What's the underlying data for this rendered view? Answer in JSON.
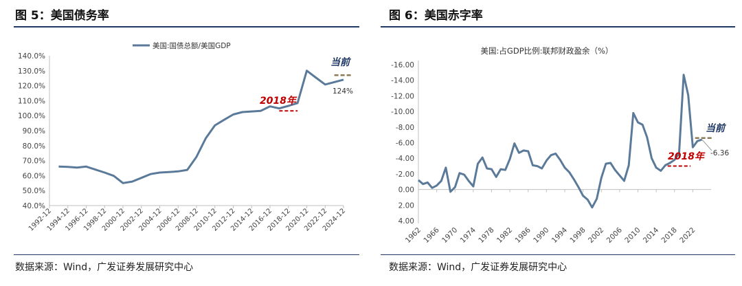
{
  "charts": [
    {
      "title": "图 5：美国债务率",
      "source": "数据来源：Wind，广发证券发展研究中心"
    },
    {
      "title": "图 6：美国赤字率",
      "source": "数据来源：Wind，广发证券发展研究中心"
    }
  ],
  "chart_data": [
    {
      "type": "line",
      "title": "",
      "xlabel": "",
      "ylabel": "",
      "legend": {
        "position": "top",
        "label": "美国:国债总额/美国GDP"
      },
      "ylim": [
        40,
        140
      ],
      "y_tick_labels": [
        "40.0%",
        "50.0%",
        "60.0%",
        "70.0%",
        "80.0%",
        "90.0%",
        "100.0%",
        "110.0%",
        "120.0%",
        "130.0%",
        "140.0%"
      ],
      "x_tick_labels": [
        "1992-12",
        "1994-12",
        "1996-12",
        "1998-12",
        "2000-12",
        "2002-12",
        "2004-12",
        "2006-12",
        "2008-12",
        "2010-12",
        "2012-12",
        "2014-12",
        "2016-12",
        "2018-12",
        "2020-12",
        "2022-12",
        "2024-12"
      ],
      "grid": false,
      "line_color": "#5b7a99",
      "series": [
        {
          "name": "美国:国债总额/美国GDP",
          "x": [
            1993,
            1994,
            1995,
            1996,
            1997,
            1998,
            1999,
            2000,
            2001,
            2002,
            2003,
            2004,
            2005,
            2006,
            2007,
            2008,
            2009,
            2010,
            2011,
            2012,
            2013,
            2014,
            2015,
            2016,
            2017,
            2018,
            2019,
            2020,
            2021,
            2022,
            2023,
            2024
          ],
          "values": [
            66,
            65.8,
            65.3,
            66,
            64,
            62,
            59.8,
            55,
            56,
            58.5,
            61,
            62,
            62.4,
            62.8,
            63.8,
            72.5,
            84.8,
            93.5,
            97.2,
            100.8,
            102.4,
            102.8,
            103.2,
            106.2,
            104.8,
            106.5,
            108.4,
            130,
            125.3,
            120.8,
            122.4,
            124
          ]
        }
      ],
      "annotations": [
        {
          "text": "2018年",
          "color": "#c00000",
          "ref_line_value": 103.2,
          "ref_line_x": [
            2017,
            2019
          ]
        },
        {
          "text": "当前",
          "color": "#1f3864",
          "ref_line_value": 127,
          "ref_line_x": [
            2023,
            2024.8
          ]
        },
        {
          "text": "124%",
          "color": "#333333"
        }
      ]
    },
    {
      "type": "line",
      "title": "美国:占GDP比例:联邦财政盈余（%）",
      "xlabel": "",
      "ylabel": "",
      "y_axis_reversed": true,
      "ylim": [
        4,
        -16
      ],
      "y_tick_labels": [
        "-16.00",
        "-14.00",
        "-12.00",
        "-10.00",
        "-8.00",
        "-6.00",
        "-4.00",
        "-2.00",
        "0.00",
        "2.00",
        "4.00"
      ],
      "x_tick_labels": [
        "1962",
        "1966",
        "1970",
        "1974",
        "1978",
        "1982",
        "1986",
        "1990",
        "1994",
        "1998",
        "2002",
        "2006",
        "2010",
        "2014",
        "2018",
        "2022"
      ],
      "grid": false,
      "line_color": "#5b7a99",
      "series": [
        {
          "name": "",
          "x": [
            1962,
            1963,
            1964,
            1965,
            1966,
            1967,
            1968,
            1969,
            1970,
            1971,
            1972,
            1973,
            1974,
            1975,
            1976,
            1977,
            1978,
            1979,
            1980,
            1981,
            1982,
            1983,
            1984,
            1985,
            1986,
            1987,
            1988,
            1989,
            1990,
            1991,
            1992,
            1993,
            1994,
            1995,
            1996,
            1997,
            1998,
            1999,
            2000,
            2001,
            2002,
            2003,
            2004,
            2005,
            2006,
            2007,
            2008,
            2009,
            2010,
            2011,
            2012,
            2013,
            2014,
            2015,
            2016,
            2017,
            2018,
            2019,
            2020,
            2021,
            2022,
            2023,
            2024
          ],
          "values": [
            -1.2,
            -0.7,
            -0.9,
            -0.2,
            -0.5,
            -1.1,
            -2.8,
            0.3,
            -0.3,
            -2.1,
            -1.9,
            -1.1,
            -0.4,
            -3.3,
            -4.1,
            -2.7,
            -2.6,
            -1.6,
            -2.6,
            -2.5,
            -3.9,
            -5.9,
            -4.7,
            -5.0,
            -4.9,
            -3.1,
            -3.0,
            -2.7,
            -3.7,
            -4.4,
            -4.6,
            -3.8,
            -2.8,
            -2.2,
            -1.3,
            -0.3,
            0.8,
            1.3,
            2.3,
            1.2,
            -1.5,
            -3.3,
            -3.4,
            -2.5,
            -1.8,
            -1.1,
            -3.1,
            -9.8,
            -8.6,
            -8.3,
            -6.7,
            -4.0,
            -2.8,
            -2.4,
            -3.1,
            -3.4,
            -3.8,
            -4.6,
            -14.7,
            -12.1,
            -5.4,
            -6.2,
            -6.4
          ]
        }
      ],
      "annotations": [
        {
          "text": "2018年",
          "color": "#c00000",
          "ref_line_value": -3.0,
          "ref_line_x": [
            2016.5,
            2021.5
          ]
        },
        {
          "text": "当前",
          "color": "#1f3864",
          "ref_line_value": -6.6,
          "ref_line_x": [
            2022.5,
            2026.5
          ]
        },
        {
          "text": "-6.36",
          "color": "#333333"
        }
      ]
    }
  ]
}
